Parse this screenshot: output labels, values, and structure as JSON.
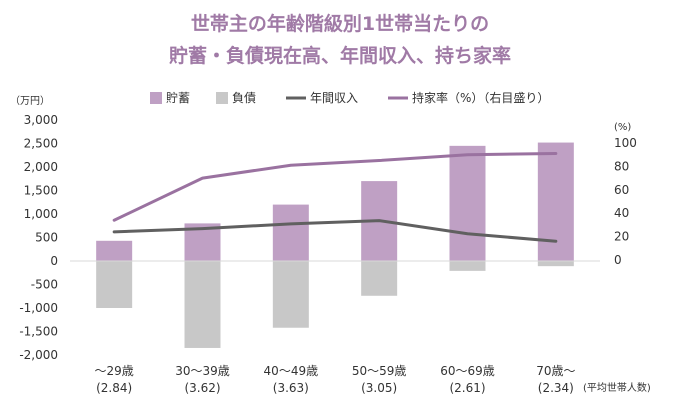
{
  "chart_data": {
    "type": "bar",
    "title_lines": [
      "世帯主の年齢階級別1世帯当たりの",
      "貯蓄・負債現在高、年間収入、持ち家率"
    ],
    "y_unit": "（万円）",
    "y2_unit": "(%)",
    "categories": [
      "～29歳",
      "30～39歳",
      "40～49歳",
      "50～59歳",
      "60～69歳",
      "70歳～"
    ],
    "household_sizes": [
      "(2.84)",
      "(3.62)",
      "(3.63)",
      "(3.05)",
      "(2.61)",
      "(2.34)"
    ],
    "household_size_label": "(平均世帯人数)",
    "ylim": [
      -2000,
      3000
    ],
    "y_ticks": [
      -2000,
      -1500,
      -1000,
      -500,
      0,
      500,
      1000,
      1500,
      2000,
      2500,
      3000
    ],
    "y_tick_labels": [
      "-2,000",
      "-1,500",
      "-1,000",
      "-500",
      "0",
      "500",
      "1,000",
      "1,500",
      "2,000",
      "2,500",
      "3,000"
    ],
    "y2lim": [
      0,
      100
    ],
    "y2_ticks": [
      0,
      20,
      40,
      60,
      80,
      100
    ],
    "y2_tick_labels": [
      "0",
      "20",
      "40",
      "60",
      "80",
      "100"
    ],
    "series": [
      {
        "name": "貯蓄",
        "kind": "bar",
        "color": "#bfa0c4",
        "values": [
          430,
          800,
          1200,
          1700,
          2450,
          2520
        ]
      },
      {
        "name": "負債",
        "kind": "bar",
        "color": "#c8c8c8",
        "values": [
          -1000,
          -1850,
          -1420,
          -740,
          -210,
          -110
        ]
      },
      {
        "name": "年間収入",
        "kind": "line",
        "axis": "left",
        "color": "#606060",
        "values": [
          620,
          690,
          790,
          860,
          580,
          420
        ]
      },
      {
        "name": "持家率（%）（右目盛り）",
        "kind": "line",
        "axis": "right",
        "color": "#9a72a0",
        "values": [
          34,
          70,
          81,
          85,
          90,
          91
        ]
      }
    ],
    "legend_position": "top",
    "grid": false
  }
}
